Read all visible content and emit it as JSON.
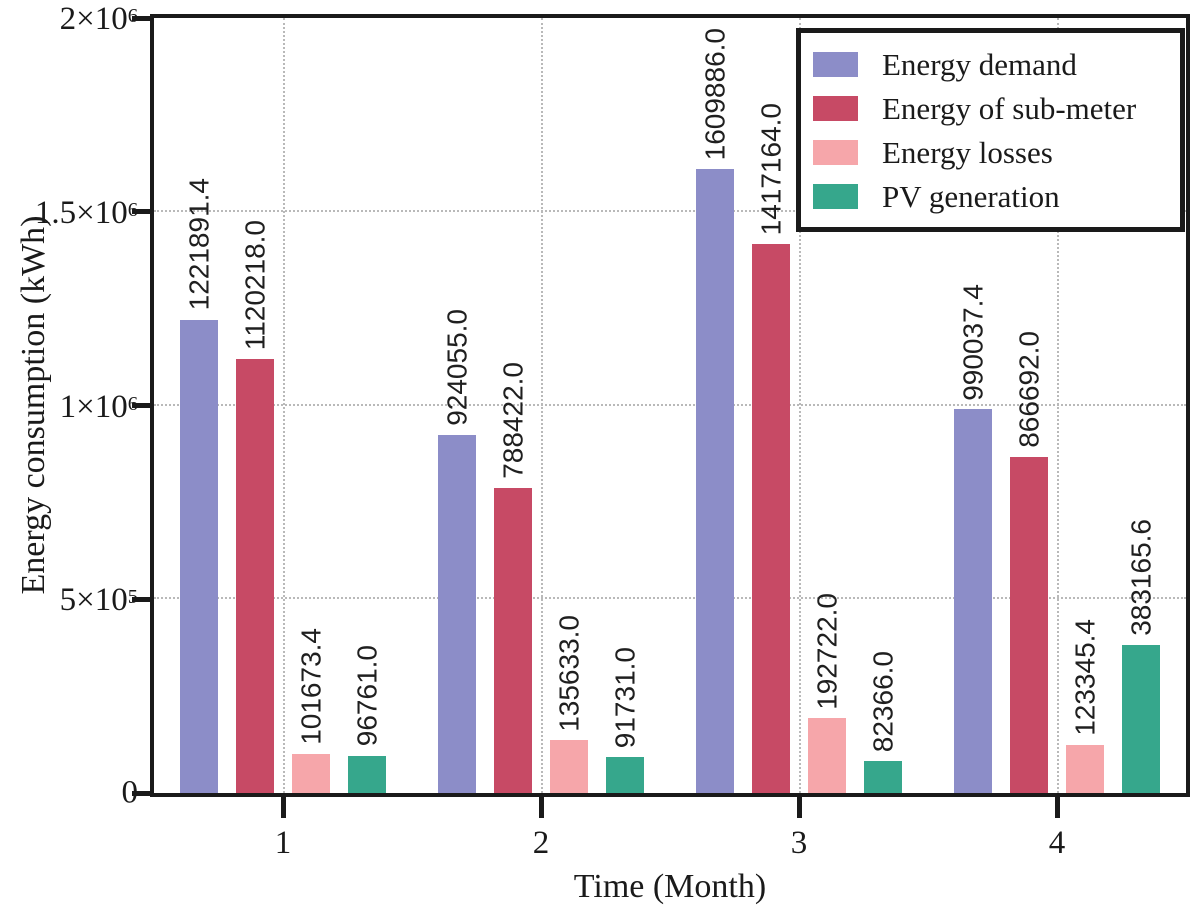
{
  "figure": {
    "background": "#ffffff",
    "frame_color": "#1a1a1a",
    "grid_color": "#b9b9b9",
    "text_color": "#1a1a1a"
  },
  "chart_data": {
    "type": "bar",
    "title": "",
    "xlabel": "Time (Month)",
    "ylabel": "Energy consumption (kWh)",
    "categories": [
      "1",
      "2",
      "3",
      "4"
    ],
    "series": [
      {
        "name": "Energy demand",
        "color": "#8c8dc8",
        "values": [
          1221891.4,
          924055.0,
          1609886.0,
          990037.4
        ],
        "labels": [
          "1221891.4",
          "924055.0",
          "1609886.0",
          "990037.4"
        ]
      },
      {
        "name": "Energy of sub-meter",
        "color": "#c74a65",
        "values": [
          1120218.0,
          788422.0,
          1417164.0,
          866692.0
        ],
        "labels": [
          "1120218.0",
          "788422.0",
          "1417164.0",
          "866692.0"
        ]
      },
      {
        "name": "Energy losses",
        "color": "#f6a6aa",
        "values": [
          101673.4,
          135633.0,
          192722.0,
          123345.4
        ],
        "labels": [
          "101673.4",
          "135633.0",
          "192722.0",
          "123345.4"
        ]
      },
      {
        "name": "PV generation",
        "color": "#36a78c",
        "values": [
          96761.0,
          91731.0,
          82366.0,
          383165.6
        ],
        "labels": [
          "96761.0",
          "91731.0",
          "82366.0",
          "383165.6"
        ]
      }
    ],
    "ylim": [
      0,
      2000000
    ],
    "yticks": [
      {
        "value": 0,
        "base": "0",
        "exp": ""
      },
      {
        "value": 500000,
        "base": "5×10",
        "exp": "5"
      },
      {
        "value": 1000000,
        "base": "1×10",
        "exp": "6"
      },
      {
        "value": 1500000,
        "base": "1.5×10",
        "exp": "6"
      },
      {
        "value": 2000000,
        "base": "2×10",
        "exp": "6"
      }
    ],
    "grid": "dotted",
    "legend_position": "upper-right",
    "legend_entries": [
      "Energy demand",
      "Energy of sub-meter",
      "Energy losses",
      "PV generation"
    ]
  }
}
